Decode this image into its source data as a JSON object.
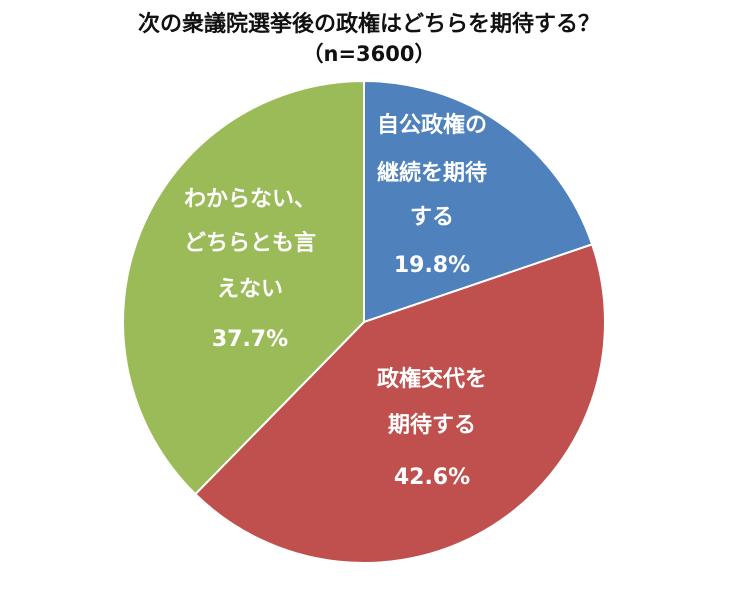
{
  "chart_data": {
    "type": "pie",
    "title": "次の衆議院選挙後の政権はどちらを期待する？",
    "subtitle": "（n=3600）",
    "slices": [
      {
        "name": "自公政権の継続を期待する",
        "label_lines": [
          "自公政権の",
          "継続を期待",
          "する"
        ],
        "value": 19.8,
        "value_label": "19.8%",
        "color": "#4f81bd"
      },
      {
        "name": "政権交代を期待する",
        "label_lines": [
          "政権交代を",
          "期待する"
        ],
        "value": 42.6,
        "value_label": "42.6%",
        "color": "#c0504d"
      },
      {
        "name": "わからない、どちらとも言えない",
        "label_lines": [
          "わからない、",
          "どちらとも言",
          "えない"
        ],
        "value": 37.7,
        "value_label": "37.7%",
        "color": "#9bbb59"
      }
    ]
  }
}
